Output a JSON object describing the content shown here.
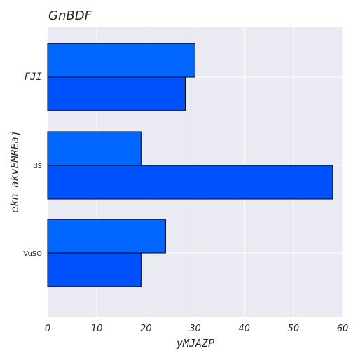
{
  "chart_data": {
    "type": "bar",
    "orientation": "horizontal",
    "title": "GnBDF",
    "xlabel": "yMJAZP",
    "ylabel": "ekn akvEMREaj",
    "categories": [
      "FJI",
      "dS",
      "VuSO"
    ],
    "series": [
      {
        "values": [
          30,
          19,
          24
        ],
        "color": "#0066ff"
      },
      {
        "values": [
          28,
          58,
          19
        ],
        "color": "#0052ff"
      }
    ],
    "xlim": [
      0,
      60
    ],
    "xticks": [
      "0",
      "10",
      "20",
      "30",
      "40",
      "50",
      "60"
    ],
    "grid": true,
    "background": "#eaeaf2"
  }
}
